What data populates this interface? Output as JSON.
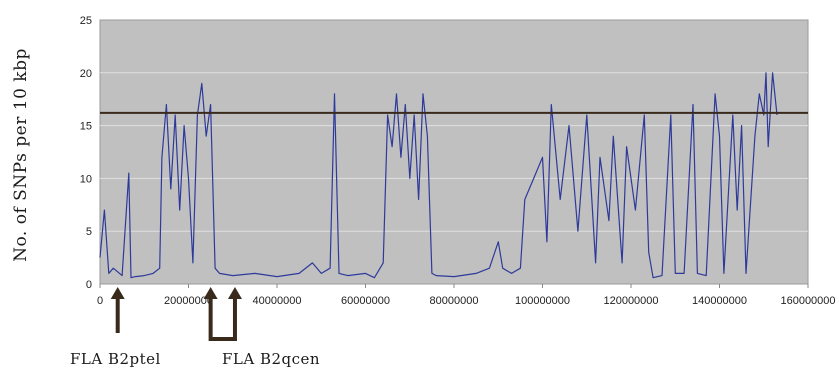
{
  "chart_data": {
    "type": "line",
    "title": "",
    "xlabel": "",
    "ylabel": "No. of SNPs per 10 kbp",
    "xlim": [
      0,
      160000000
    ],
    "ylim": [
      0,
      25
    ],
    "x_ticks": [
      0,
      20000000,
      40000000,
      60000000,
      80000000,
      100000000,
      120000000,
      140000000,
      160000000
    ],
    "x_tick_labels": [
      "0",
      "20000000",
      "40000000",
      "60000000",
      "80000000",
      "100000000",
      "120000000",
      "140000000",
      "160000000"
    ],
    "y_ticks": [
      0,
      5,
      10,
      15,
      20,
      25
    ],
    "y_tick_labels": [
      "0",
      "5",
      "10",
      "15",
      "20",
      "25"
    ],
    "grid": true,
    "background": "#c0c0c0",
    "series_color": "#2e3a9a",
    "threshold": {
      "y": 16.2,
      "color": "#3a2a1c"
    },
    "series": [
      {
        "points": [
          [
            0,
            2.5
          ],
          [
            1000000,
            7
          ],
          [
            2000000,
            1
          ],
          [
            3000000,
            1.5
          ],
          [
            5000000,
            0.8
          ],
          [
            6500000,
            10.5
          ],
          [
            7000000,
            0.6
          ],
          [
            8000000,
            0.7
          ],
          [
            10000000,
            0.8
          ],
          [
            12000000,
            1
          ],
          [
            13500000,
            1.5
          ],
          [
            14000000,
            12
          ],
          [
            15000000,
            17
          ],
          [
            16000000,
            9
          ],
          [
            17000000,
            16
          ],
          [
            18000000,
            7
          ],
          [
            19000000,
            15
          ],
          [
            20000000,
            10
          ],
          [
            21000000,
            2
          ],
          [
            22000000,
            16
          ],
          [
            23000000,
            19
          ],
          [
            24000000,
            14
          ],
          [
            25000000,
            17
          ],
          [
            26000000,
            1.5
          ],
          [
            27000000,
            1
          ],
          [
            30000000,
            0.8
          ],
          [
            35000000,
            1
          ],
          [
            40000000,
            0.7
          ],
          [
            45000000,
            1
          ],
          [
            48000000,
            2
          ],
          [
            50000000,
            1
          ],
          [
            52000000,
            1.5
          ],
          [
            53000000,
            18
          ],
          [
            54000000,
            1
          ],
          [
            56000000,
            0.8
          ],
          [
            60000000,
            1
          ],
          [
            62000000,
            0.6
          ],
          [
            64000000,
            2
          ],
          [
            65000000,
            16
          ],
          [
            66000000,
            13
          ],
          [
            67000000,
            18
          ],
          [
            68000000,
            12
          ],
          [
            69000000,
            17
          ],
          [
            70000000,
            10
          ],
          [
            71000000,
            16
          ],
          [
            72000000,
            8
          ],
          [
            73000000,
            18
          ],
          [
            74000000,
            14
          ],
          [
            75000000,
            1
          ],
          [
            76000000,
            0.8
          ],
          [
            80000000,
            0.7
          ],
          [
            85000000,
            1
          ],
          [
            88000000,
            1.5
          ],
          [
            90000000,
            4
          ],
          [
            91000000,
            1.5
          ],
          [
            93000000,
            1
          ],
          [
            95000000,
            1.5
          ],
          [
            96000000,
            8
          ],
          [
            98000000,
            10
          ],
          [
            100000000,
            12
          ],
          [
            101000000,
            4
          ],
          [
            102000000,
            17
          ],
          [
            104000000,
            8
          ],
          [
            106000000,
            15
          ],
          [
            108000000,
            5
          ],
          [
            110000000,
            16
          ],
          [
            112000000,
            2
          ],
          [
            113000000,
            12
          ],
          [
            115000000,
            6
          ],
          [
            116000000,
            14
          ],
          [
            118000000,
            2
          ],
          [
            119000000,
            13
          ],
          [
            121000000,
            7
          ],
          [
            123000000,
            16
          ],
          [
            124000000,
            3
          ],
          [
            125000000,
            0.6
          ],
          [
            127000000,
            0.8
          ],
          [
            129000000,
            16
          ],
          [
            130000000,
            1
          ],
          [
            132000000,
            1
          ],
          [
            134000000,
            17
          ],
          [
            135000000,
            1
          ],
          [
            137000000,
            0.8
          ],
          [
            139000000,
            18
          ],
          [
            140000000,
            14
          ],
          [
            141000000,
            1
          ],
          [
            143000000,
            16
          ],
          [
            144000000,
            7
          ],
          [
            145000000,
            15
          ],
          [
            146000000,
            1
          ],
          [
            148000000,
            14
          ],
          [
            149000000,
            18
          ],
          [
            150000000,
            16
          ],
          [
            150500000,
            20
          ],
          [
            151000000,
            13
          ],
          [
            152000000,
            20
          ],
          [
            153000000,
            16
          ]
        ]
      }
    ],
    "annotations": [
      {
        "label": "FLA B2ptel",
        "arrow_x": [
          4000000
        ]
      },
      {
        "label": "FLA B2qcen",
        "arrow_x": [
          25000000,
          30500000
        ]
      }
    ]
  }
}
